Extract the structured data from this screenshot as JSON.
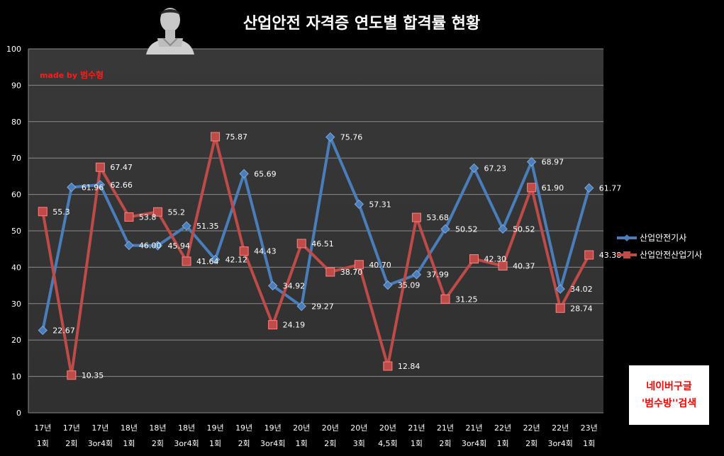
{
  "chart_data": {
    "type": "line",
    "title": "산업안전 자격증 연도별 합격률 현황",
    "watermark": {
      "prefix": "made by",
      "name": "범수형"
    },
    "annotation": {
      "line1": "네이버구글",
      "line2": "'범수방''검색"
    },
    "ylim": [
      0,
      100
    ],
    "y_ticks": [
      "0",
      "10",
      "20",
      "30",
      "40",
      "50",
      "60",
      "70",
      "80",
      "90",
      "100"
    ],
    "grid": true,
    "legend_position": "right",
    "categories": [
      [
        "17년",
        "1회"
      ],
      [
        "17년",
        "2회"
      ],
      [
        "17년",
        "3or4회"
      ],
      [
        "18년",
        "1회"
      ],
      [
        "18년",
        "2회"
      ],
      [
        "18년",
        "3or4회"
      ],
      [
        "19년",
        "1회"
      ],
      [
        "19년",
        "2회"
      ],
      [
        "19년",
        "3or4회"
      ],
      [
        "20년",
        "1회"
      ],
      [
        "20년",
        "2회"
      ],
      [
        "20년",
        "3회"
      ],
      [
        "20년",
        "4,5회"
      ],
      [
        "21년",
        "1회"
      ],
      [
        "21년",
        "2회"
      ],
      [
        "21년",
        "3or4회"
      ],
      [
        "22년",
        "1회"
      ],
      [
        "22년",
        "2회"
      ],
      [
        "22년",
        "3or4회"
      ],
      [
        "23년",
        "1회"
      ]
    ],
    "series": [
      {
        "name": "산업안전기사",
        "color": "#4a7ebb",
        "marker": "diamond",
        "values": [
          22.67,
          61.96,
          62.66,
          46.0,
          45.94,
          51.35,
          42.12,
          65.69,
          34.92,
          29.27,
          75.76,
          57.31,
          35.09,
          37.99,
          50.52,
          67.23,
          50.52,
          68.97,
          34.02,
          61.77
        ],
        "labels": [
          "22.67",
          "61.96",
          "62.66",
          "46.00",
          "45.94",
          "51.35",
          "42.12",
          "65.69",
          "34.92",
          "29.27",
          "75.76",
          "57.31",
          "35.09",
          "37.99",
          "50.52",
          "67.23",
          "50.52",
          "68.97",
          "34.02",
          "61.77"
        ]
      },
      {
        "name": "산업안전산업기사",
        "color": "#be4b48",
        "marker": "square",
        "values": [
          55.3,
          10.35,
          67.47,
          53.8,
          55.2,
          41.64,
          75.87,
          44.43,
          24.19,
          46.51,
          38.7,
          40.7,
          12.84,
          53.68,
          31.25,
          42.3,
          40.37,
          61.9,
          28.74,
          43.38
        ],
        "labels": [
          "55.3",
          "10.35",
          "67.47",
          "53.8",
          "55.2",
          "41.64",
          "75.87",
          "44.43",
          "24.19",
          "46.51",
          "38.70",
          "40.70",
          "12.84",
          "53.68",
          "31.25",
          "42.30",
          "40.37",
          "61.90",
          "28.74",
          "43.38"
        ]
      }
    ]
  }
}
